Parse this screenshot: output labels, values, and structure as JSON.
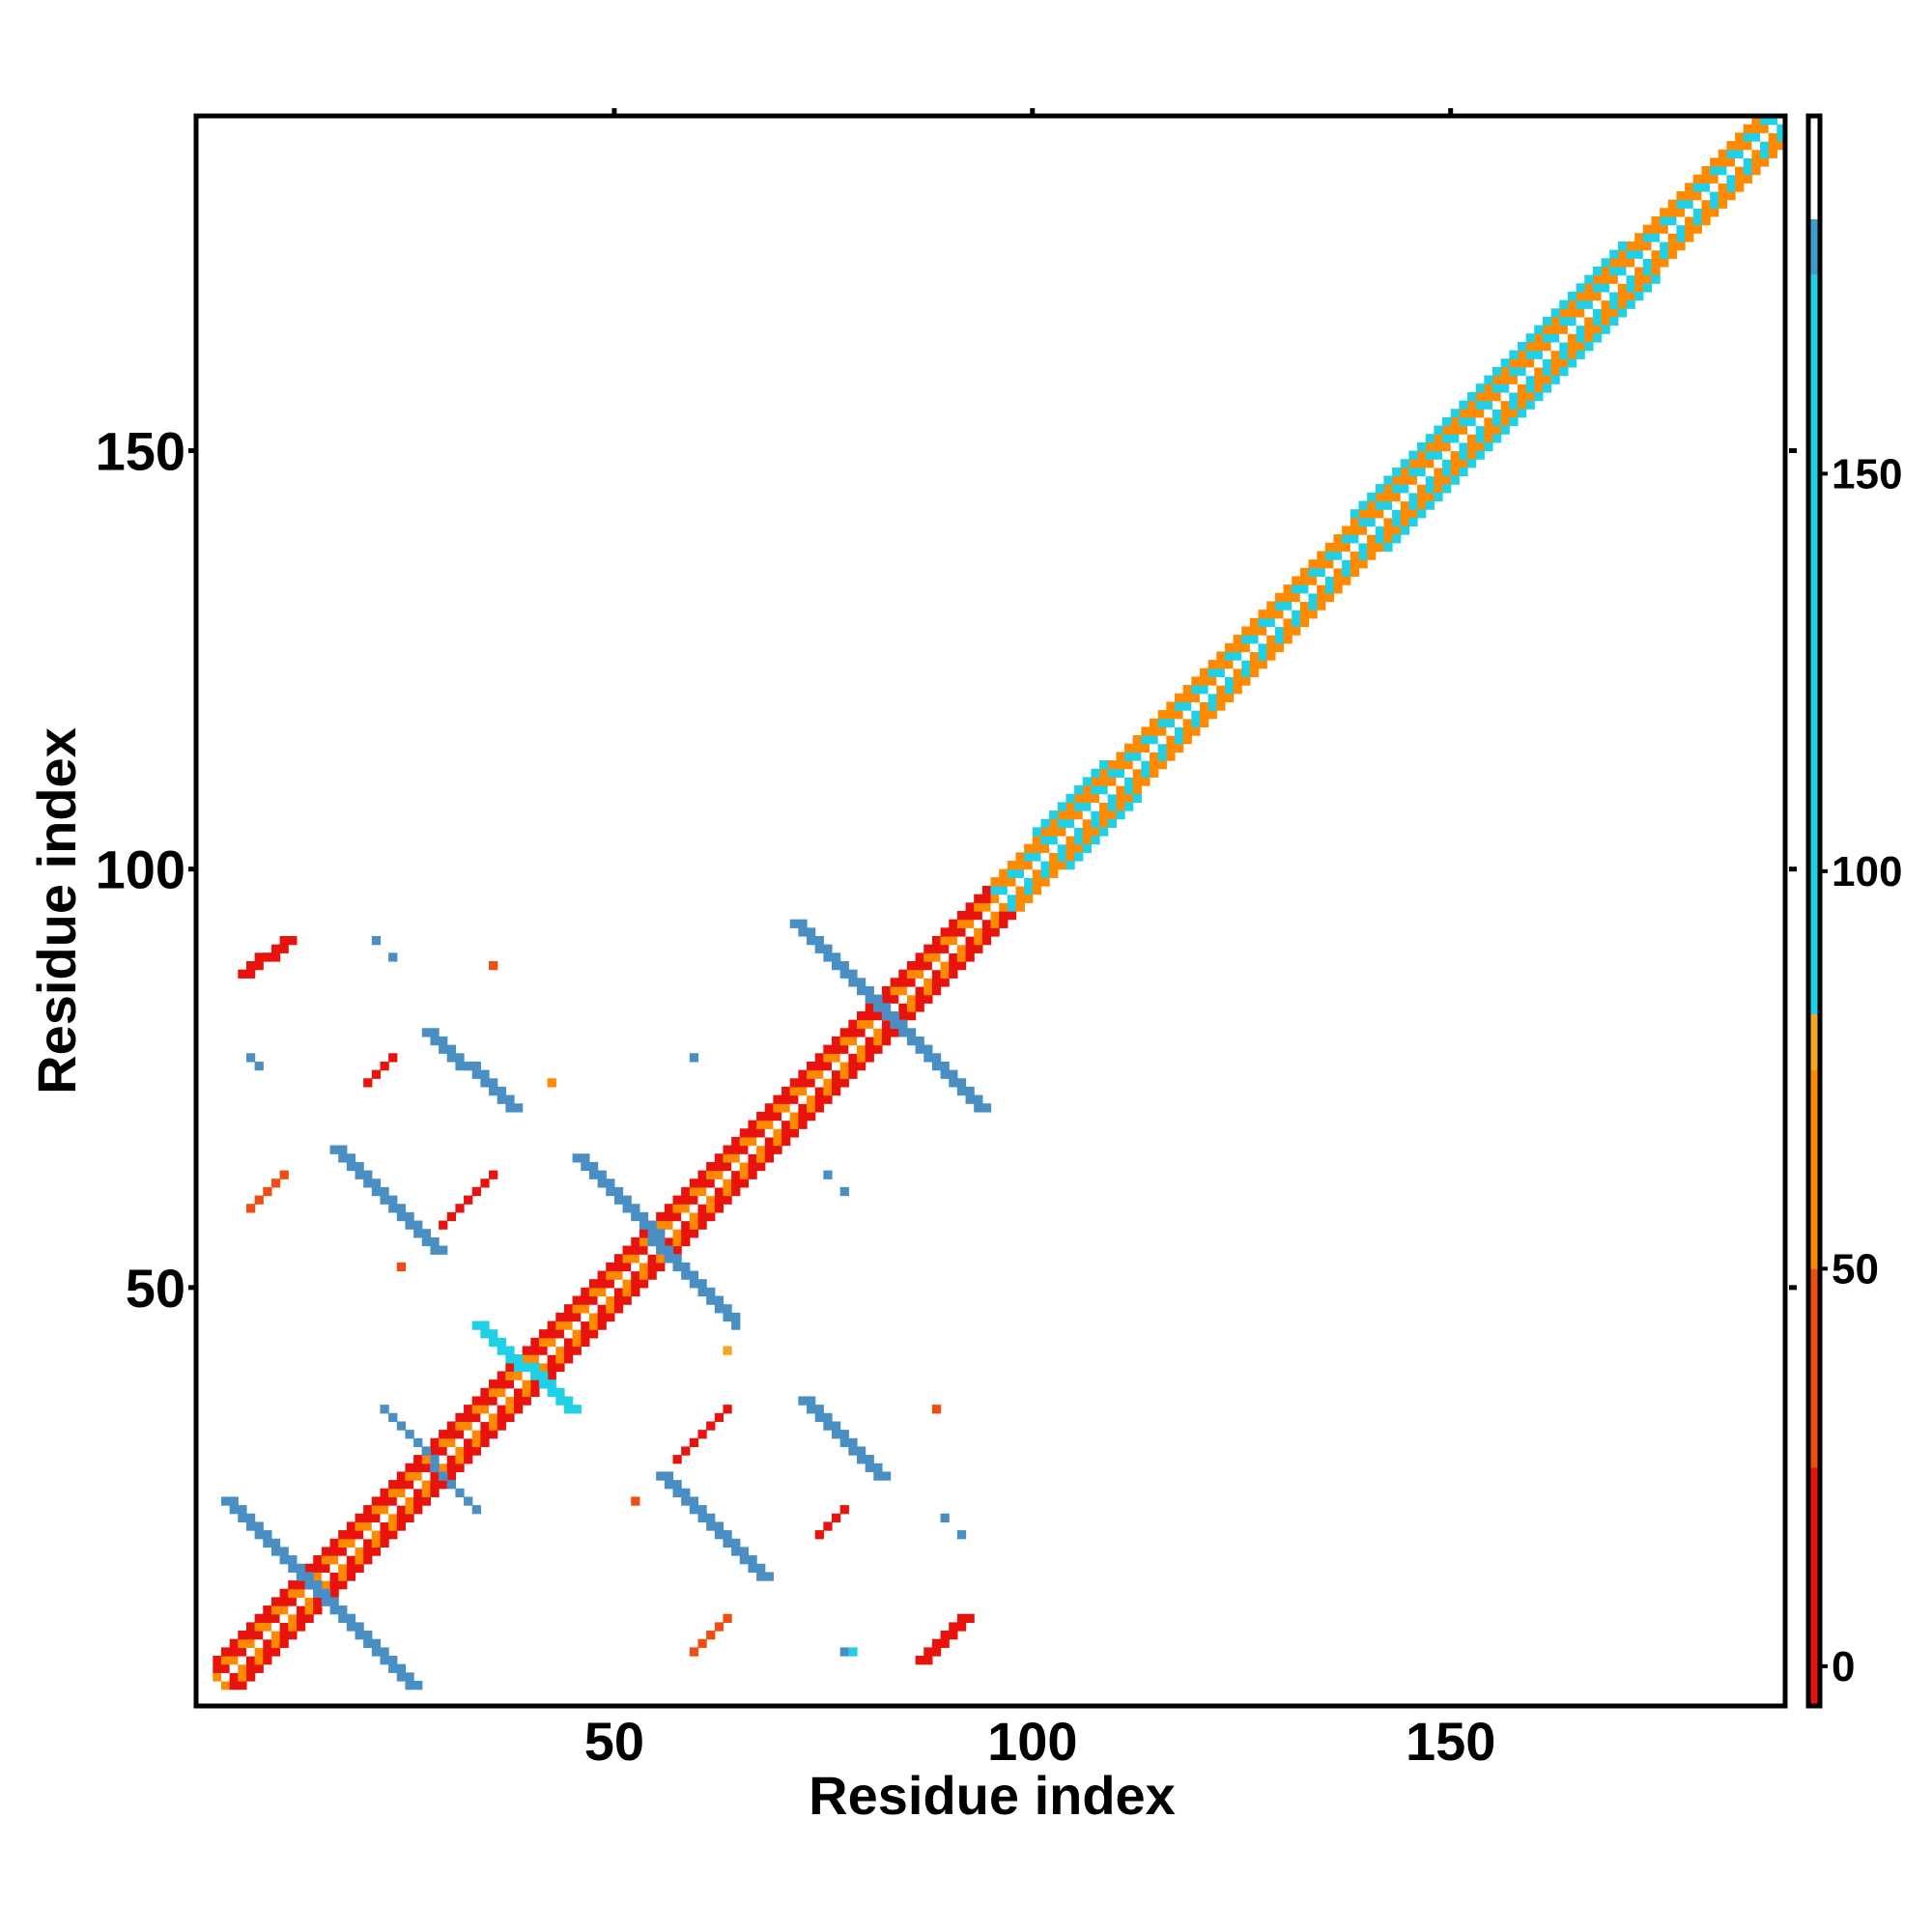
{
  "chart_data": {
    "type": "heatmap",
    "title": "",
    "xlabel": "Residue index",
    "ylabel": "Residue index",
    "xlim": [
      0,
      190
    ],
    "ylim": [
      0,
      190
    ],
    "x_ticks": [
      50,
      100,
      150
    ],
    "y_ticks": [
      50,
      100,
      150
    ],
    "x_tick_labels": [
      "50",
      "100",
      "150"
    ],
    "y_tick_labels": [
      "50",
      "100",
      "150"
    ],
    "colorbar": {
      "ticks": [
        0,
        50,
        100,
        150
      ],
      "tick_labels": [
        "0",
        "50",
        "100",
        "150"
      ],
      "range": [
        -5,
        195
      ],
      "bands": [
        {
          "from": -5,
          "to": 25,
          "color": "#e8130c"
        },
        {
          "from": 25,
          "to": 50,
          "color": "#ef4e12"
        },
        {
          "from": 50,
          "to": 75,
          "color": "#ff8a00"
        },
        {
          "from": 75,
          "to": 82,
          "color": "#f5a623"
        },
        {
          "from": 82,
          "to": 175,
          "color": "#1fd0e6"
        },
        {
          "from": 175,
          "to": 182,
          "color": "#3d9fd0"
        },
        {
          "from": 182,
          "to": 195,
          "color": "#ffffff"
        }
      ]
    },
    "diagonal": {
      "from": 2,
      "to": 188,
      "segments": [
        {
          "from": 2,
          "to": 95,
          "colors": [
            "#e8130c",
            "#ff8a00",
            "#ffffff"
          ]
        },
        {
          "from": 95,
          "to": 188,
          "colors": [
            "#ff8a00",
            "#1fd0e6",
            "#ffffff"
          ]
        }
      ],
      "inner_cyan_bands": [
        {
          "from": 100,
          "to": 108
        },
        {
          "from": 138,
          "to": 170
        }
      ]
    },
    "contacts": [
      {
        "kind": "anti",
        "x1": 3,
        "y1": 24,
        "x2": 25,
        "y2": 2,
        "color": "#4a8fc4",
        "width": 2
      },
      {
        "kind": "anti",
        "x1": 16,
        "y1": 66,
        "x2": 28,
        "y2": 54,
        "color": "#4a8fc4",
        "width": 2
      },
      {
        "kind": "anti",
        "x1": 27,
        "y1": 80,
        "x2": 37,
        "y2": 71,
        "color": "#4a8fc4",
        "width": 2
      },
      {
        "kind": "anti",
        "x1": 45,
        "y1": 65,
        "x2": 63,
        "y2": 46,
        "color": "#4a8fc4",
        "width": 2
      },
      {
        "kind": "anti",
        "x1": 71,
        "y1": 93,
        "x2": 93,
        "y2": 71,
        "color": "#4a8fc4",
        "width": 2
      },
      {
        "kind": "anti",
        "x1": 55,
        "y1": 27,
        "x2": 67,
        "y2": 15,
        "color": "#4a8fc4",
        "width": 2
      },
      {
        "kind": "anti",
        "x1": 72,
        "y1": 36,
        "x2": 81,
        "y2": 27,
        "color": "#4a8fc4",
        "width": 2
      },
      {
        "kind": "anti",
        "x1": 33,
        "y1": 45,
        "x2": 44,
        "y2": 35,
        "color": "#1fd0e6",
        "width": 2
      },
      {
        "kind": "anti",
        "x1": 22,
        "y1": 35,
        "x2": 33,
        "y2": 23,
        "color": "#4a8fc4",
        "width": 1
      },
      {
        "kind": "para",
        "x1": 5,
        "y1": 87,
        "x2": 10,
        "y2": 91,
        "color": "#e8130c",
        "width": 2
      },
      {
        "kind": "para",
        "x1": 29,
        "y1": 57,
        "x2": 35,
        "y2": 63,
        "color": "#e8130c",
        "width": 1
      },
      {
        "kind": "para",
        "x1": 57,
        "y1": 29,
        "x2": 63,
        "y2": 35,
        "color": "#e8130c",
        "width": 1
      },
      {
        "kind": "para",
        "x1": 86,
        "y1": 5,
        "x2": 91,
        "y2": 10,
        "color": "#e8130c",
        "width": 2
      },
      {
        "kind": "para",
        "x1": 6,
        "y1": 59,
        "x2": 10,
        "y2": 63,
        "color": "#ef4e12",
        "width": 1
      },
      {
        "kind": "para",
        "x1": 59,
        "y1": 6,
        "x2": 63,
        "y2": 10,
        "color": "#ef4e12",
        "width": 1
      },
      {
        "kind": "para",
        "x1": 20,
        "y1": 74,
        "x2": 23,
        "y2": 77,
        "color": "#e8130c",
        "width": 1
      },
      {
        "kind": "para",
        "x1": 74,
        "y1": 20,
        "x2": 77,
        "y2": 23,
        "color": "#e8130c",
        "width": 1
      },
      {
        "kind": "dot",
        "x": 6,
        "y": 77,
        "color": "#4a8fc4"
      },
      {
        "kind": "dot",
        "x": 7,
        "y": 76,
        "color": "#4a8fc4"
      },
      {
        "kind": "dot",
        "x": 77,
        "y": 6,
        "color": "#4a8fc4"
      },
      {
        "kind": "dot",
        "x": 78,
        "y": 6,
        "color": "#1fd0e6"
      },
      {
        "kind": "dot",
        "x": 21,
        "y": 91,
        "color": "#4a8fc4"
      },
      {
        "kind": "dot",
        "x": 23,
        "y": 89,
        "color": "#4a8fc4"
      },
      {
        "kind": "dot",
        "x": 35,
        "y": 88,
        "color": "#ef4e12"
      },
      {
        "kind": "dot",
        "x": 42,
        "y": 74,
        "color": "#ff8a00"
      },
      {
        "kind": "dot",
        "x": 24,
        "y": 52,
        "color": "#ef4e12"
      },
      {
        "kind": "dot",
        "x": 52,
        "y": 24,
        "color": "#ef4e12"
      },
      {
        "kind": "dot",
        "x": 59,
        "y": 77,
        "color": "#4a8fc4"
      },
      {
        "kind": "dot",
        "x": 75,
        "y": 63,
        "color": "#4a8fc4"
      },
      {
        "kind": "dot",
        "x": 77,
        "y": 61,
        "color": "#4a8fc4"
      },
      {
        "kind": "dot",
        "x": 63,
        "y": 42,
        "color": "#f5a623"
      },
      {
        "kind": "dot",
        "x": 88,
        "y": 35,
        "color": "#ef4e12"
      },
      {
        "kind": "dot",
        "x": 89,
        "y": 22,
        "color": "#4a8fc4"
      },
      {
        "kind": "dot",
        "x": 91,
        "y": 20,
        "color": "#4a8fc4"
      },
      {
        "kind": "dot",
        "x": 64,
        "y": 45,
        "color": "#4a8fc4"
      }
    ]
  }
}
